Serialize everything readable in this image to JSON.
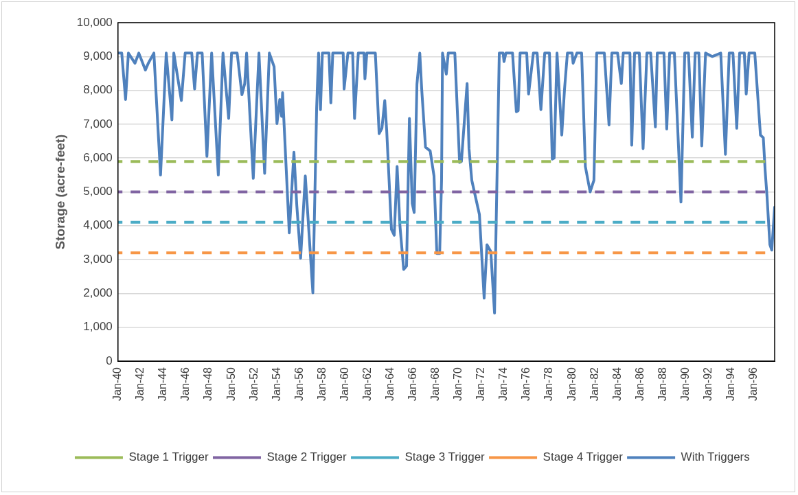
{
  "chart_data": {
    "type": "line",
    "ylabel": "Storage (acre-feet)",
    "xlim": [
      "1940-01",
      "1997-11"
    ],
    "xticks": [
      {
        "value": "1940-01",
        "label": "Jan-40"
      },
      {
        "value": "1942-01",
        "label": "Jan-42"
      },
      {
        "value": "1944-01",
        "label": "Jan-44"
      },
      {
        "value": "1946-01",
        "label": "Jan-46"
      },
      {
        "value": "1948-01",
        "label": "Jan-48"
      },
      {
        "value": "1950-01",
        "label": "Jan-50"
      },
      {
        "value": "1952-01",
        "label": "Jan-52"
      },
      {
        "value": "1954-01",
        "label": "Jan-54"
      },
      {
        "value": "1956-01",
        "label": "Jan-56"
      },
      {
        "value": "1958-01",
        "label": "Jan-58"
      },
      {
        "value": "1960-01",
        "label": "Jan-60"
      },
      {
        "value": "1962-01",
        "label": "Jan-62"
      },
      {
        "value": "1964-01",
        "label": "Jan-64"
      },
      {
        "value": "1966-01",
        "label": "Jan-66"
      },
      {
        "value": "1968-01",
        "label": "Jan-68"
      },
      {
        "value": "1970-01",
        "label": "Jan-70"
      },
      {
        "value": "1972-01",
        "label": "Jan-72"
      },
      {
        "value": "1974-01",
        "label": "Jan-74"
      },
      {
        "value": "1976-01",
        "label": "Jan-76"
      },
      {
        "value": "1978-01",
        "label": "Jan-78"
      },
      {
        "value": "1980-01",
        "label": "Jan-80"
      },
      {
        "value": "1982-01",
        "label": "Jan-82"
      },
      {
        "value": "1984-01",
        "label": "Jan-84"
      },
      {
        "value": "1986-01",
        "label": "Jan-86"
      },
      {
        "value": "1988-01",
        "label": "Jan-88"
      },
      {
        "value": "1990-01",
        "label": "Jan-90"
      },
      {
        "value": "1992-01",
        "label": "Jan-92"
      },
      {
        "value": "1994-01",
        "label": "Jan-94"
      },
      {
        "value": "1996-01",
        "label": "Jan-96"
      }
    ],
    "ylim": [
      0,
      10000
    ],
    "yticks": [
      {
        "value": 0,
        "label": "0"
      },
      {
        "value": 1000,
        "label": "1,000"
      },
      {
        "value": 2000,
        "label": "2,000"
      },
      {
        "value": 3000,
        "label": "3,000"
      },
      {
        "value": 4000,
        "label": "4,000"
      },
      {
        "value": 5000,
        "label": "5,000"
      },
      {
        "value": 6000,
        "label": "6,000"
      },
      {
        "value": 7000,
        "label": "7,000"
      },
      {
        "value": 8000,
        "label": "8,000"
      },
      {
        "value": 9000,
        "label": "9,000"
      },
      {
        "value": 10000,
        "label": "10,000"
      }
    ],
    "grid": "y",
    "legend": "bottom",
    "marker": "none",
    "series": [
      {
        "name": "Stage 1 Trigger",
        "color": "#9bbb59",
        "line_style": "dashed",
        "x": [
          "1940-01",
          "1997-01"
        ],
        "values": [
          5900,
          5900
        ]
      },
      {
        "name": "Stage 2 Trigger",
        "color": "#8064a2",
        "line_style": "dashed",
        "x": [
          "1940-01",
          "1997-01"
        ],
        "values": [
          5000,
          5000
        ]
      },
      {
        "name": "Stage 3 Trigger",
        "color": "#4bacc6",
        "line_style": "dashed",
        "x": [
          "1940-01",
          "1997-01"
        ],
        "values": [
          4100,
          4100
        ]
      },
      {
        "name": "Stage 4 Trigger",
        "color": "#f79646",
        "line_style": "dashed",
        "x": [
          "1940-01",
          "1997-01"
        ],
        "values": [
          3200,
          3200
        ]
      },
      {
        "name": "With Triggers",
        "color": "#4f81bd",
        "line_style": "solid",
        "x": [
          "1940-01",
          "1940-05",
          "1940-09",
          "1940-12",
          "1941-07",
          "1941-11",
          "1942-06",
          "1942-09",
          "1943-03",
          "1943-10",
          "1944-04",
          "1944-10",
          "1944-12",
          "1945-08",
          "1945-12",
          "1946-07",
          "1946-10",
          "1947-01",
          "1947-06",
          "1947-11",
          "1948-04",
          "1948-11",
          "1949-04",
          "1949-10",
          "1950-01",
          "1950-07",
          "1950-12",
          "1951-03",
          "1951-05",
          "1951-12",
          "1952-06",
          "1952-12",
          "1953-05",
          "1953-10",
          "1954-01",
          "1954-04",
          "1954-06",
          "1954-07",
          "1955-02",
          "1955-07",
          "1955-10",
          "1956-02",
          "1956-07",
          "1957-03",
          "1957-07",
          "1957-09",
          "1957-11",
          "1958-01",
          "1958-08",
          "1958-10",
          "1958-12",
          "1959-11",
          "1959-12",
          "1960-04",
          "1960-09",
          "1960-11",
          "1961-03",
          "1961-09",
          "1961-10",
          "1961-12",
          "1962-09",
          "1963-01",
          "1963-04",
          "1963-07",
          "1963-09",
          "1964-02",
          "1964-05",
          "1964-08",
          "1964-11",
          "1965-03",
          "1965-06",
          "1965-09",
          "1965-12",
          "1966-02",
          "1966-05",
          "1966-08",
          "1966-10",
          "1967-02",
          "1967-07",
          "1967-11",
          "1968-02",
          "1968-05",
          "1968-07",
          "1968-08",
          "1968-12",
          "1969-02",
          "1969-09",
          "1970-02",
          "1970-04",
          "1970-10",
          "1970-12",
          "1971-03",
          "1971-11",
          "1972-04",
          "1972-07",
          "1972-11",
          "1973-03",
          "1973-08",
          "1973-12",
          "1974-01",
          "1974-03",
          "1974-10",
          "1975-02",
          "1975-04",
          "1975-06",
          "1976-01",
          "1976-03",
          "1976-08",
          "1976-12",
          "1977-04",
          "1977-08",
          "1978-01",
          "1978-04",
          "1978-06",
          "1978-09",
          "1979-02",
          "1979-05",
          "1979-08",
          "1980-01",
          "1980-02",
          "1980-06",
          "1980-11",
          "1981-03",
          "1981-08",
          "1981-12",
          "1982-01",
          "1982-03",
          "1982-11",
          "1983-04",
          "1983-07",
          "1984-01",
          "1984-05",
          "1984-07",
          "1985-02",
          "1985-04",
          "1985-07",
          "1985-12",
          "1986-04",
          "1986-08",
          "1986-12",
          "1987-05",
          "1987-07",
          "1988-02",
          "1988-05",
          "1988-08",
          "1989-01",
          "1989-08",
          "1989-12",
          "1990-04",
          "1990-08",
          "1990-11",
          "1991-03",
          "1991-06",
          "1991-10",
          "1992-05",
          "1993-02",
          "1993-07",
          "1993-11",
          "1994-03",
          "1994-07",
          "1994-10",
          "1995-03",
          "1995-05",
          "1995-08",
          "1996-02",
          "1996-08",
          "1996-11",
          "1997-01",
          "1997-03",
          "1997-06",
          "1997-08",
          "1997-11"
        ],
        "values": [
          9100,
          9100,
          7730,
          9100,
          8800,
          9100,
          8600,
          8800,
          9100,
          5500,
          9100,
          7130,
          9100,
          7700,
          9100,
          9100,
          8040,
          9100,
          9100,
          6050,
          9100,
          5500,
          9100,
          7170,
          9100,
          9100,
          7870,
          8200,
          9100,
          5400,
          9100,
          5550,
          9100,
          8700,
          7020,
          7730,
          7230,
          7930,
          3790,
          6170,
          4600,
          3040,
          5470,
          2020,
          7490,
          9100,
          7430,
          9100,
          9100,
          7630,
          9100,
          9100,
          8040,
          9100,
          9100,
          7170,
          9100,
          9100,
          8340,
          9100,
          9100,
          6720,
          6880,
          7700,
          6820,
          3890,
          3720,
          5750,
          3990,
          2710,
          2810,
          7170,
          4660,
          4390,
          8180,
          9100,
          8040,
          6320,
          6210,
          5470,
          3180,
          3180,
          5340,
          9100,
          8480,
          9100,
          9100,
          5870,
          5900,
          8200,
          6280,
          5340,
          4330,
          1860,
          3440,
          3240,
          1420,
          9100,
          9100,
          8850,
          9100,
          9100,
          7370,
          7400,
          9100,
          9100,
          7890,
          9100,
          9100,
          7430,
          9100,
          9100,
          5970,
          6000,
          9100,
          6680,
          8040,
          9100,
          9100,
          8800,
          9100,
          9100,
          5750,
          5000,
          5340,
          6560,
          9100,
          9100,
          6980,
          9100,
          9100,
          8200,
          9100,
          9100,
          6380,
          9100,
          9100,
          6280,
          9100,
          9100,
          6920,
          9100,
          9100,
          6860,
          9100,
          9100,
          4700,
          9100,
          9100,
          6620,
          9100,
          9100,
          6360,
          9100,
          9000,
          9100,
          6110,
          9100,
          9100,
          6880,
          9100,
          9100,
          7890,
          9100,
          9100,
          6680,
          6600,
          5610,
          4860,
          3440,
          3280,
          4550
        ]
      }
    ]
  }
}
